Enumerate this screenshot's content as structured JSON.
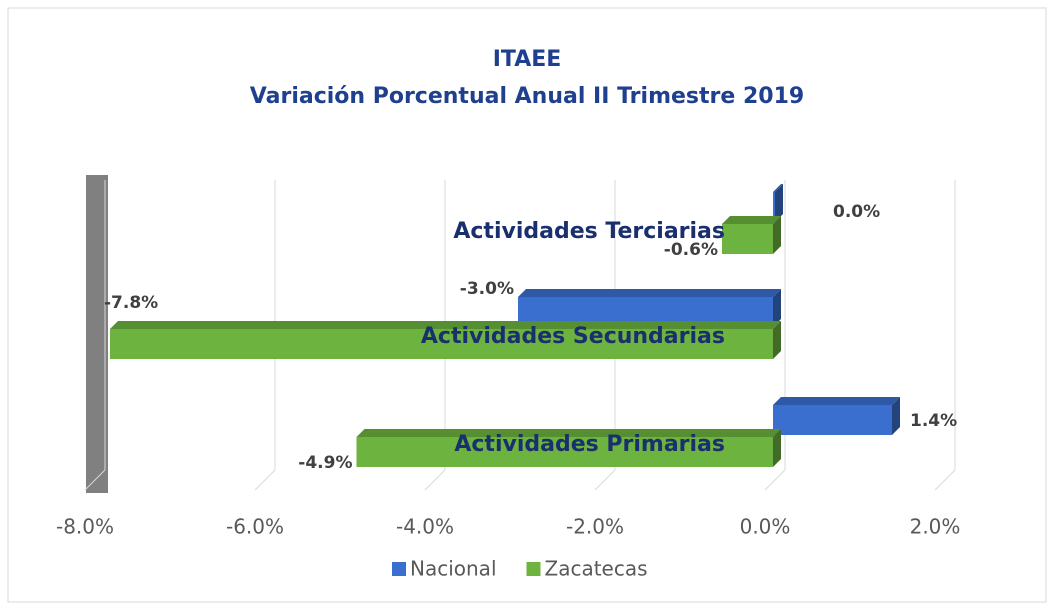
{
  "chart_data": {
    "type": "bar3d_horizontal",
    "title": "ITAEE",
    "subtitle": "Variación Porcentual Anual II Trimestre 2019",
    "categories": [
      "Actividades Primarias",
      "Actividades Secundarias",
      "Actividades Terciarias"
    ],
    "series": [
      {
        "name": "Nacional",
        "color": "#3a6fd0",
        "values": [
          1.4,
          -3.0,
          0.0
        ],
        "value_labels": [
          "1.4%",
          "-3.0%",
          "0.0%"
        ]
      },
      {
        "name": "Zacatecas",
        "color": "#6cb33f",
        "values": [
          -4.9,
          -7.8,
          -0.6
        ],
        "value_labels": [
          "-4.9%",
          "-7.8%",
          "-0.6%"
        ]
      }
    ],
    "xlim": [
      -8,
      2
    ],
    "xticks": [
      {
        "value": -8,
        "label": "-8.0%"
      },
      {
        "value": -6,
        "label": "-6.0%"
      },
      {
        "value": -4,
        "label": "-4.0%"
      },
      {
        "value": -2,
        "label": "-2.0%"
      },
      {
        "value": 0,
        "label": "0.0%"
      },
      {
        "value": 2,
        "label": "2.0%"
      }
    ],
    "grid": true,
    "legend": "bottom"
  }
}
